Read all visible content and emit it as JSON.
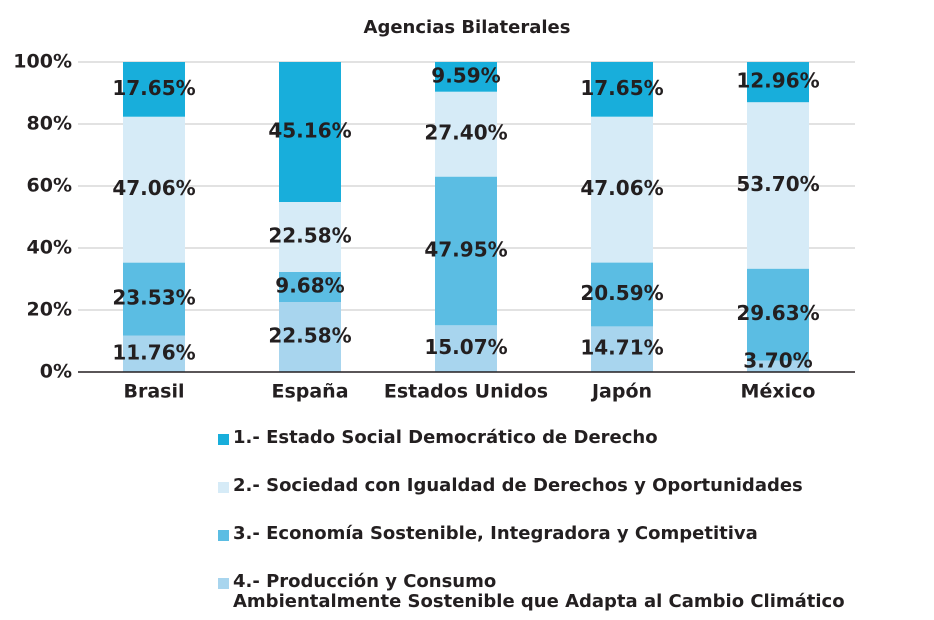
{
  "chart_data": {
    "type": "stacked_bar",
    "title": "Agencias Bilaterales",
    "categories": [
      "Brasil",
      "España",
      "Estados Unidos",
      "Japón",
      "México"
    ],
    "series": [
      {
        "name": "1.- Estado Social Democrático de Derecho",
        "color": "#18aedb",
        "values": [
          17.65,
          45.16,
          9.59,
          17.65,
          12.96
        ],
        "value_labels": [
          "17.65%",
          "45.16%",
          "9.59%",
          "17.65%",
          "12.96%"
        ]
      },
      {
        "name": "2.- Sociedad con Igualdad de Derechos y Oportunidades",
        "color": "#d6ebf7",
        "values": [
          47.06,
          22.58,
          27.4,
          47.06,
          53.7
        ],
        "value_labels": [
          "47.06%",
          "22.58%",
          "27.40%",
          "47.06%",
          "53.70%"
        ]
      },
      {
        "name": "3.- Economía Sostenible, Integradora y Competitiva",
        "color": "#5bbde3",
        "values": [
          23.53,
          9.68,
          47.95,
          20.59,
          29.63
        ],
        "value_labels": [
          "23.53%",
          "9.68%",
          "47.95%",
          "20.59%",
          "29.63%"
        ]
      },
      {
        "name": "4.- Producción y Consumo\nAmbientalmente Sostenible que Adapta al Cambio Climático",
        "color": "#a8d5ee",
        "values": [
          11.76,
          22.58,
          15.07,
          14.71,
          3.7
        ],
        "value_labels": [
          "11.76%",
          "22.58%",
          "15.07%",
          "14.71%",
          "3.70%"
        ]
      }
    ],
    "ylim": [
      0,
      100
    ],
    "yticks": [
      {
        "value": 0,
        "label": "0%"
      },
      {
        "value": 20,
        "label": "20%"
      },
      {
        "value": 40,
        "label": "40%"
      },
      {
        "value": 60,
        "label": "60%"
      },
      {
        "value": 80,
        "label": "80%"
      },
      {
        "value": 100,
        "label": "100%"
      }
    ],
    "grid": true
  }
}
